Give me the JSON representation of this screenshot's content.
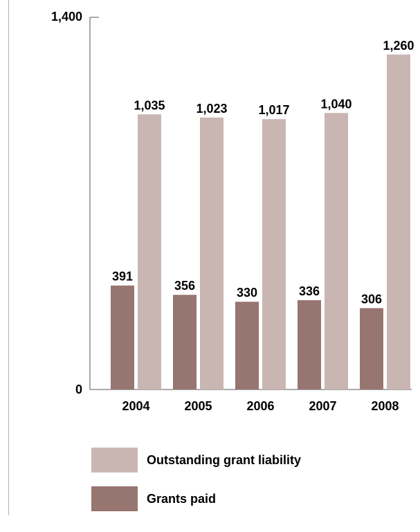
{
  "chart_data": {
    "type": "bar",
    "categories": [
      "2004",
      "2005",
      "2006",
      "2007",
      "2008"
    ],
    "series": [
      {
        "name": "Grants paid",
        "values": [
          391,
          356,
          330,
          336,
          306
        ],
        "color": "#977570"
      },
      {
        "name": "Outstanding grant liability",
        "values": [
          1035,
          1023,
          1017,
          1040,
          1260
        ],
        "color": "#c9b6b2"
      }
    ],
    "data_labels": {
      "Grants paid": [
        "391",
        "356",
        "330",
        "336",
        "306"
      ],
      "Outstanding grant liability": [
        "1,035",
        "1,023",
        "1,017",
        "1,040",
        "1,260"
      ]
    },
    "yticks": [
      "0",
      "1,400"
    ],
    "ylim": [
      0,
      1400
    ],
    "title": "",
    "xlabel": "",
    "ylabel": "",
    "legend": {
      "position": "bottom-left",
      "items": [
        {
          "label": "Outstanding grant liability",
          "color": "#c9b6b2"
        },
        {
          "label": "Grants paid",
          "color": "#977570"
        }
      ]
    },
    "grid": false
  }
}
